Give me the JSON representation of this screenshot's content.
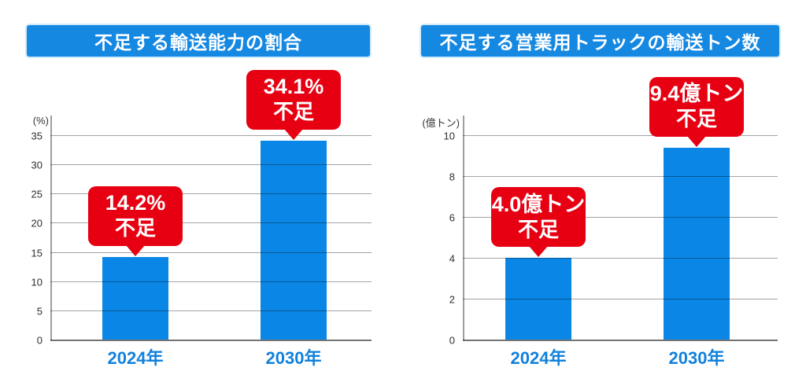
{
  "chart_data": [
    {
      "type": "bar",
      "title": "不足する輸送能力の割合",
      "ylabel": "(%)",
      "xlabel": "",
      "categories": [
        "2024年",
        "2030年"
      ],
      "values": [
        14.2,
        34.1
      ],
      "ticks": [
        0,
        5,
        10,
        15,
        20,
        25,
        30,
        35
      ],
      "ylim": [
        0,
        35
      ],
      "grid": true,
      "legend": "none",
      "callouts": [
        {
          "line1": "14.2%",
          "line2": "不足"
        },
        {
          "line1": "34.1%",
          "line2": "不足"
        }
      ]
    },
    {
      "type": "bar",
      "title": "不足する営業用トラックの輸送トン数",
      "ylabel": "(億トン)",
      "xlabel": "",
      "categories": [
        "2024年",
        "2030年"
      ],
      "values": [
        4.0,
        9.4
      ],
      "ticks": [
        0,
        2,
        4,
        6,
        8,
        10
      ],
      "ylim": [
        0,
        10
      ],
      "grid": true,
      "legend": "none",
      "callouts": [
        {
          "line1": "4.0億トン",
          "line2": "不足"
        },
        {
          "line1": "9.4億トン",
          "line2": "不足"
        }
      ]
    }
  ],
  "colors": {
    "banner_blue": "#1588E2",
    "bar_blue": "#0A87E6",
    "label_blue": "#1181DC",
    "callout_red": "#E60012",
    "callout_text": "#FFFFFF",
    "grid_gray": "#9C9C9C",
    "tick_text": "#2E2E2E",
    "background": "#FFFFFF"
  }
}
